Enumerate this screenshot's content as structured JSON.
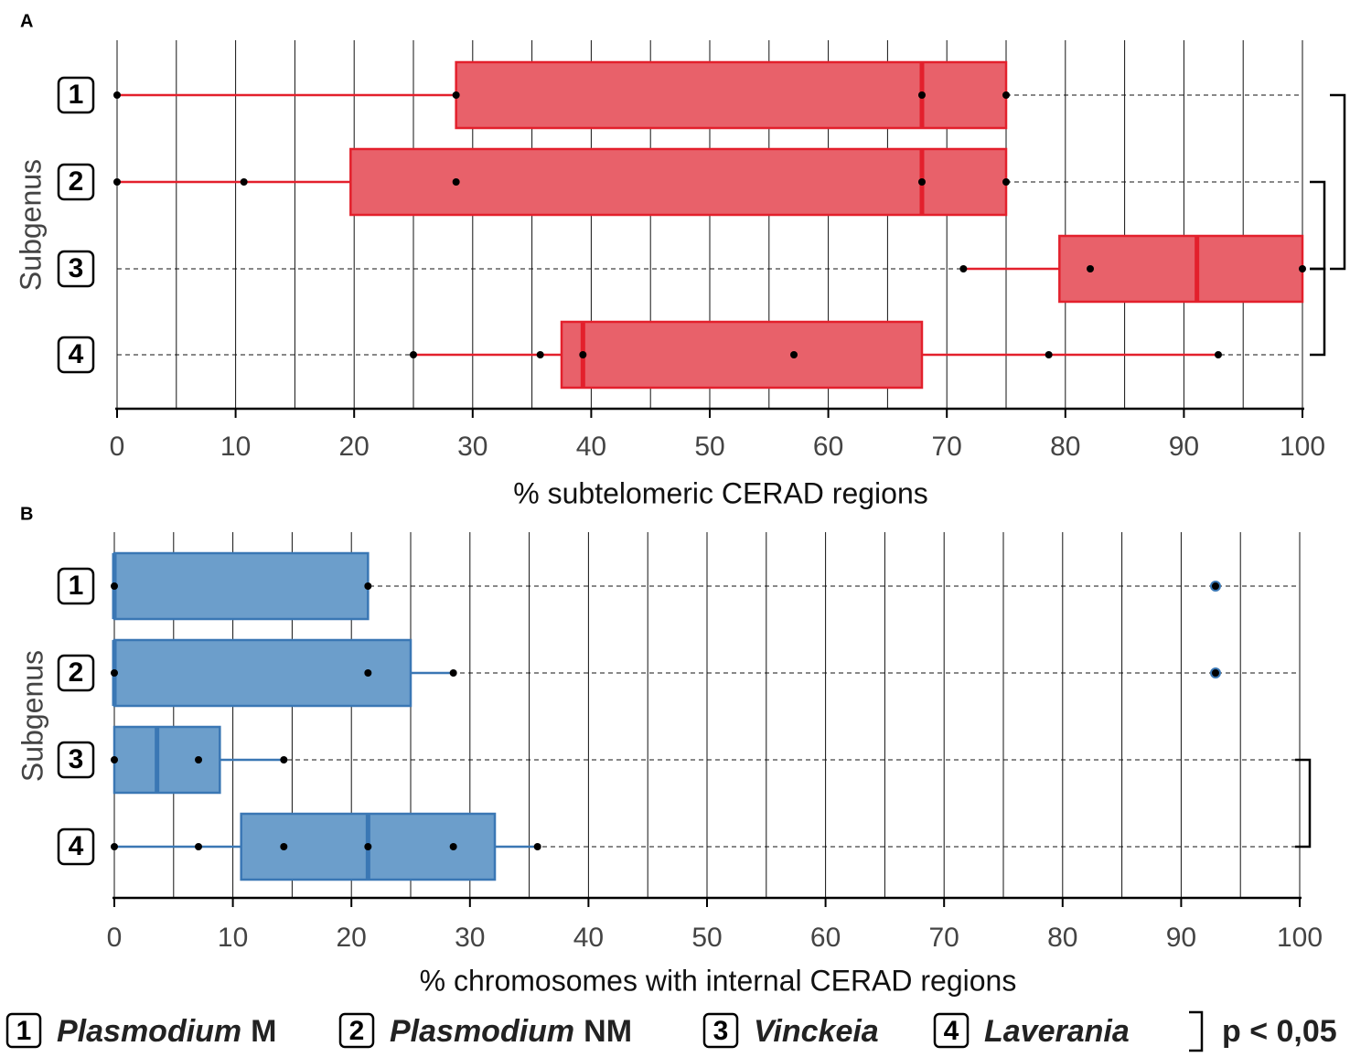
{
  "chart_data": [
    {
      "type": "boxplot",
      "panel_label": "A",
      "xlabel": "% subtelomeric CERAD regions",
      "ylabel": "Subgenus",
      "xlim": [
        0,
        100
      ],
      "x_ticks": [
        0,
        10,
        20,
        30,
        40,
        50,
        60,
        70,
        80,
        90,
        100
      ],
      "color": "#e8616a",
      "edge_color": "#e3202c",
      "groups": [
        {
          "label": "1",
          "whisker_low": 0,
          "q1": 28.6,
          "median": 67.9,
          "q3": 75,
          "whisker_high": 75,
          "points": [
            0,
            28.6,
            67.9,
            75
          ]
        },
        {
          "label": "2",
          "whisker_low": 0,
          "q1": 19.7,
          "median": 67.9,
          "q3": 75,
          "whisker_high": 75,
          "points": [
            0,
            10.7,
            28.6,
            67.9,
            75
          ]
        },
        {
          "label": "3",
          "whisker_low": 71.4,
          "q1": 79.5,
          "median": 91.1,
          "q3": 100,
          "whisker_high": 100,
          "points": [
            71.4,
            82.1,
            100
          ]
        },
        {
          "label": "4",
          "whisker_low": 25,
          "q1": 37.5,
          "median": 39.3,
          "q3": 67.9,
          "whisker_high": 92.9,
          "points": [
            25,
            35.7,
            39.3,
            57.1,
            78.6,
            92.9
          ]
        }
      ],
      "significance_brackets": [
        [
          "1",
          "3"
        ],
        [
          "2",
          "3"
        ],
        [
          "3",
          "4"
        ]
      ]
    },
    {
      "type": "boxplot",
      "panel_label": "B",
      "xlabel": "% chromosomes with internal CERAD regions",
      "ylabel": "Subgenus",
      "xlim": [
        0,
        100
      ],
      "x_ticks": [
        0,
        10,
        20,
        30,
        40,
        50,
        60,
        70,
        80,
        90,
        100
      ],
      "color": "#6c9ecb",
      "edge_color": "#3a77b4",
      "groups": [
        {
          "label": "1",
          "whisker_low": 0,
          "q1": 0,
          "median": 0,
          "q3": 21.4,
          "whisker_high": 21.4,
          "points": [
            0,
            21.4
          ],
          "outliers": [
            92.9
          ]
        },
        {
          "label": "2",
          "whisker_low": 0,
          "q1": 0,
          "median": 0,
          "q3": 25,
          "whisker_high": 28.6,
          "points": [
            0,
            21.4,
            28.6
          ],
          "outliers": [
            92.9
          ]
        },
        {
          "label": "3",
          "whisker_low": 0,
          "q1": 0,
          "median": 3.6,
          "q3": 8.9,
          "whisker_high": 14.3,
          "points": [
            0,
            7.1,
            14.3
          ]
        },
        {
          "label": "4",
          "whisker_low": 0,
          "q1": 10.7,
          "median": 21.4,
          "q3": 32.1,
          "whisker_high": 35.7,
          "points": [
            0,
            7.1,
            14.3,
            21.4,
            28.6,
            35.7
          ]
        }
      ],
      "significance_brackets": [
        [
          "3",
          "4"
        ]
      ]
    }
  ],
  "legend": {
    "items": [
      {
        "num": "1",
        "name": "Plasmodium",
        "suffix": "M"
      },
      {
        "num": "2",
        "name": "Plasmodium",
        "suffix": "NM"
      },
      {
        "num": "3",
        "name": "Vinckeia",
        "suffix": ""
      },
      {
        "num": "4",
        "name": "Laverania",
        "suffix": ""
      }
    ],
    "significance_label": "p < 0,05"
  }
}
